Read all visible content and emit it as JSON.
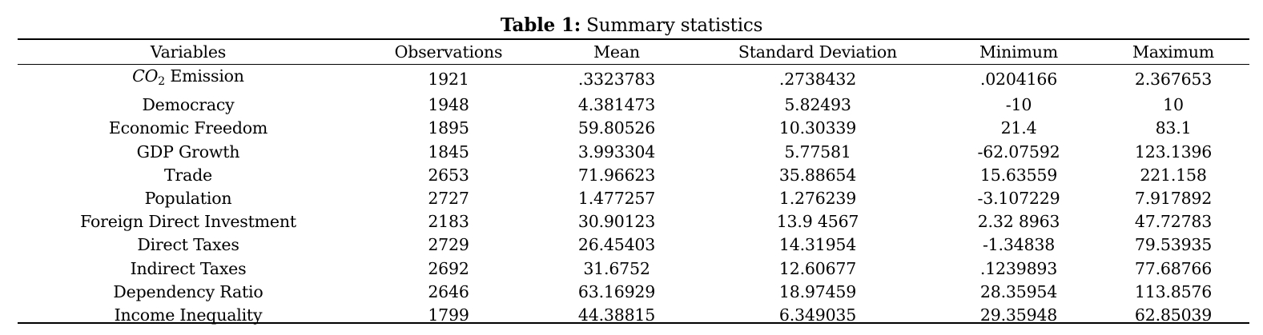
{
  "caption": {
    "label": "Table 1:",
    "text": "Summary statistics"
  },
  "table": {
    "headers": [
      "Variables",
      "Observations",
      "Mean",
      "Standard Deviation",
      "Minimum",
      "Maximum"
    ],
    "co2_row": {
      "symbol": "CO",
      "subscript": "2",
      "suffix": "Emission",
      "values": [
        "1921",
        ".3323783",
        ".2738432",
        ".0204166",
        "2.367653"
      ]
    },
    "rows": [
      {
        "variable": "Democracy",
        "values": [
          "1948",
          "4.381473",
          "5.82493",
          "-10",
          "10"
        ]
      },
      {
        "variable": "Economic Freedom",
        "values": [
          "1895",
          "59.80526",
          "10.30339",
          "21.4",
          "83.1"
        ]
      },
      {
        "variable": "GDP Growth",
        "values": [
          "1845",
          "3.993304",
          "5.77581",
          "-62.07592",
          "123.1396"
        ]
      },
      {
        "variable": "Trade",
        "values": [
          "2653",
          "71.96623",
          "35.88654",
          "15.63559",
          "221.158"
        ]
      },
      {
        "variable": "Population",
        "values": [
          "2727",
          "1.477257",
          "1.276239",
          "-3.107229",
          "7.917892"
        ]
      },
      {
        "variable": "Foreign Direct Investment",
        "values": [
          "2183",
          "30.90123",
          "13.9 4567",
          "2.32 8963",
          "47.72783"
        ]
      },
      {
        "variable": "Direct Taxes",
        "values": [
          "2729",
          "26.45403",
          "14.31954",
          "-1.34838",
          "79.53935"
        ]
      },
      {
        "variable": "Indirect Taxes",
        "values": [
          "2692",
          "31.6752",
          "12.60677",
          ".1239893",
          "77.68766"
        ]
      },
      {
        "variable": "Dependency Ratio",
        "values": [
          "2646",
          "63.16929",
          "18.97459",
          "28.35954",
          "113.8576"
        ]
      },
      {
        "variable": "Income Inequality",
        "values": [
          "1799",
          "44.38815",
          "6.349035",
          "29.35948",
          "62.85039"
        ]
      }
    ]
  }
}
